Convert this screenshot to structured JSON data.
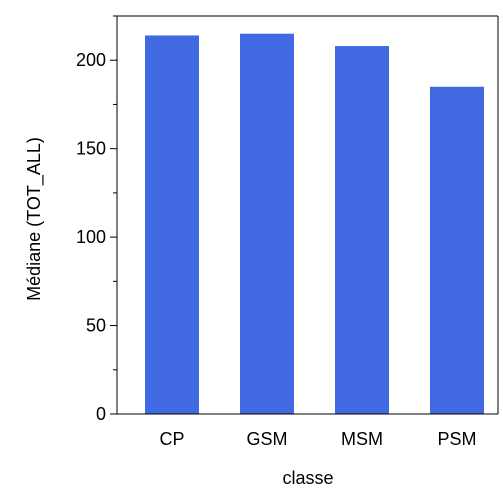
{
  "chart_data": {
    "type": "bar",
    "title": "",
    "xlabel": "classe",
    "ylabel": "Médiane (TOT_ALL)",
    "categories": [
      "CP",
      "GSM",
      "MSM",
      "PSM"
    ],
    "values": [
      214,
      215,
      208,
      185
    ],
    "ylim": [
      0,
      225
    ],
    "yticks": [
      0,
      50,
      100,
      150,
      200
    ],
    "grid": false,
    "legend": "none",
    "bar_color": "#4169e1"
  }
}
